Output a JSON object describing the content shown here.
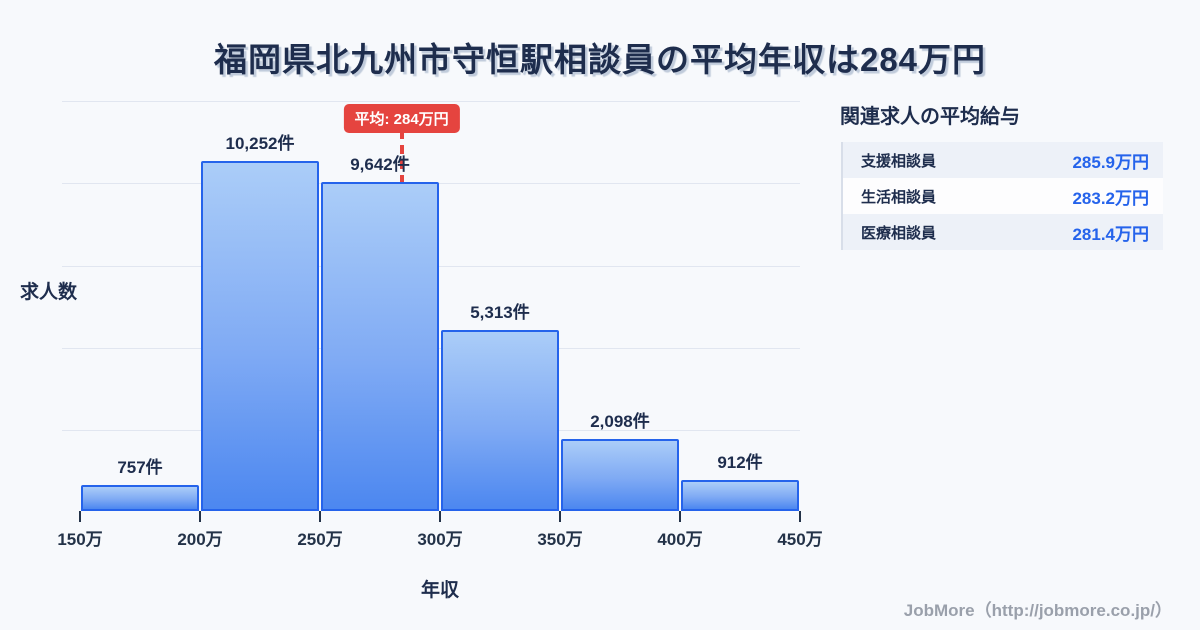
{
  "title": {
    "text": "福岡県北九州市守恒駅相談員の平均年収は284万円"
  },
  "chart_data": {
    "type": "bar",
    "title": "福岡県北九州市守恒駅相談員の平均年収は284万円",
    "categories": [
      "150万-200万",
      "200万-250万",
      "250万-300万",
      "300万-350万",
      "350万-400万",
      "400万-450万"
    ],
    "values": [
      757,
      10252,
      9642,
      5313,
      2098,
      912
    ],
    "bar_labels": [
      "757件",
      "10,252件",
      "9,642件",
      "5,313件",
      "2,098件",
      "912件"
    ],
    "x_ticks": [
      "150万",
      "200万",
      "250万",
      "300万",
      "350万",
      "400万",
      "450万"
    ],
    "x_range_man_yen": [
      150,
      450
    ],
    "xlabel": "年収",
    "ylabel": "求人数",
    "ylim": [
      0,
      10252
    ],
    "grid": true,
    "legend": false,
    "average": {
      "value_man_yen": 284,
      "label": "平均: 284万円"
    },
    "colors": {
      "bar_fill_top": "#abcdf8",
      "bar_fill_bottom": "#4c87f0",
      "bar_border": "#2563eb",
      "average_red": "#e5443f",
      "text_navy": "#1e2d4d",
      "gridline": "#e1e6f0"
    }
  },
  "related_panel": {
    "heading": "関連求人の平均給与",
    "rows": [
      {
        "label": "支援相談員",
        "value": "285.9万円"
      },
      {
        "label": "生活相談員",
        "value": "283.2万円"
      },
      {
        "label": "医療相談員",
        "value": "281.4万円"
      }
    ],
    "value_color": "#2563eb"
  },
  "footer": {
    "credit": "JobMore（http://jobmore.co.jp/）"
  }
}
